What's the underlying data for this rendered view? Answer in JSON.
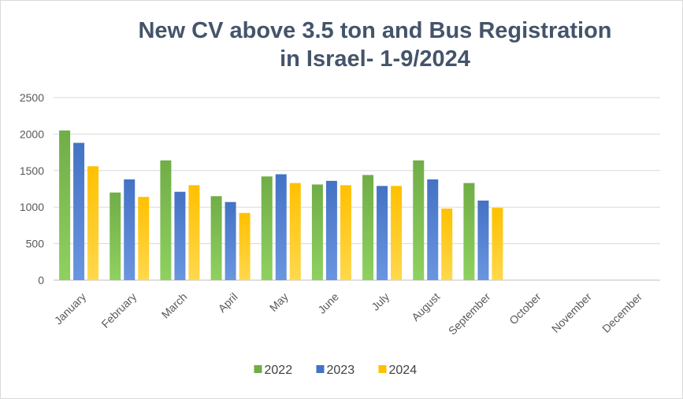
{
  "chart_data": {
    "type": "bar",
    "title_lines": [
      "New CV above 3.5 ton and Bus Registration",
      "in Israel- 1-9/2024"
    ],
    "xlabel": "",
    "ylabel": "",
    "ylim": [
      0,
      2500
    ],
    "yticks": [
      0,
      500,
      1000,
      1500,
      2000,
      2500
    ],
    "grid": true,
    "legend_position": "bottom",
    "categories": [
      "January",
      "February",
      "March",
      "April",
      "May",
      "June",
      "July",
      "August",
      "September",
      "October",
      "November",
      "December"
    ],
    "series": [
      {
        "name": "2022",
        "color": "#70ad47",
        "color_light": "#8fd160",
        "values": [
          2050,
          1200,
          1640,
          1150,
          1420,
          1310,
          1440,
          1640,
          1330,
          null,
          null,
          null
        ]
      },
      {
        "name": "2023",
        "color": "#4472c4",
        "color_light": "#6a95e0",
        "values": [
          1880,
          1380,
          1210,
          1070,
          1450,
          1360,
          1290,
          1380,
          1090,
          null,
          null,
          null
        ]
      },
      {
        "name": "2024",
        "color": "#ffc000",
        "color_light": "#ffd84d",
        "values": [
          1560,
          1140,
          1300,
          920,
          1330,
          1300,
          1290,
          980,
          990,
          null,
          null,
          null
        ]
      }
    ]
  }
}
